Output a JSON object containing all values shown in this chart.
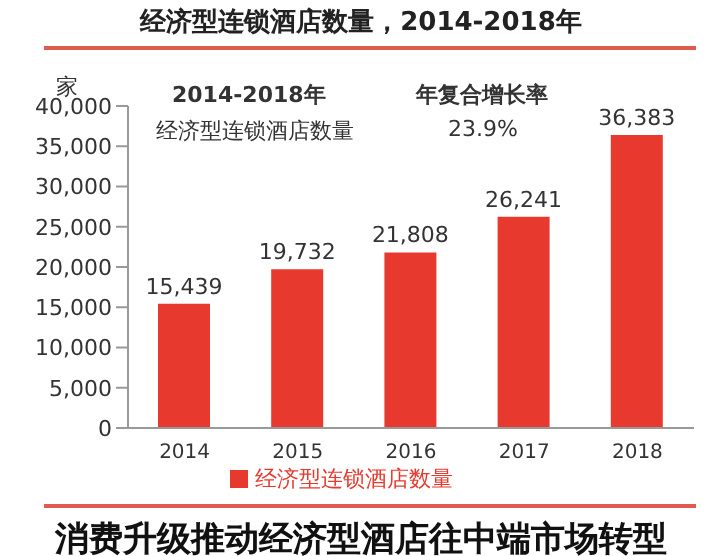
{
  "chart_data": {
    "type": "bar",
    "title": "经济型连锁酒店数量，2014-2018年",
    "ylabel": "家",
    "categories": [
      "2014",
      "2015",
      "2016",
      "2017",
      "2018"
    ],
    "series": [
      {
        "name": "经济型连锁酒店数量",
        "color": "#e8392f",
        "values": [
          15439,
          19732,
          21808,
          26241,
          36383
        ],
        "value_labels": [
          "15,439",
          "19,732",
          "21,808",
          "26,241",
          "36,383"
        ]
      }
    ],
    "ylim": [
      0,
      40000
    ],
    "yticks": [
      0,
      {
        "value": 5000,
        "label": "5,000"
      },
      {
        "value": 10000,
        "label": "10,000"
      },
      {
        "value": 15000,
        "label": "15,000"
      },
      {
        "value": 20000,
        "label": "20,000"
      },
      {
        "value": 25000,
        "label": "25,000"
      },
      {
        "value": 30000,
        "label": "30,000"
      },
      {
        "value": 35000,
        "label": "35,000"
      },
      {
        "value": 40000,
        "label": "40,000"
      }
    ],
    "grid": false,
    "legend": "bottom",
    "annotations": [
      "2014-2018年",
      "年复合增长率",
      "经济型连锁酒店数量",
      "23.9%",
      "消费升级推动经济型酒店往中端市场转型"
    ]
  }
}
